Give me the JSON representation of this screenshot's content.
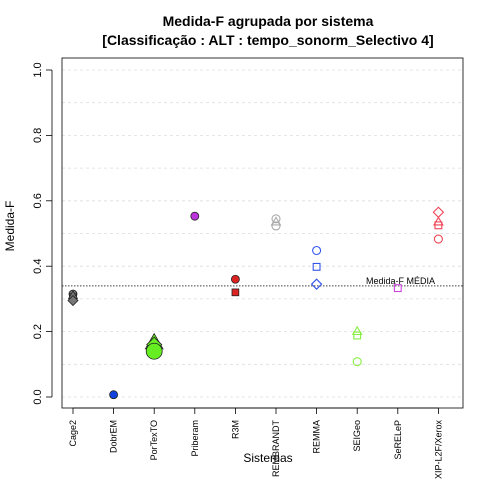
{
  "chart_data": {
    "type": "scatter",
    "title_line1": "Medida-F agrupada por sistema",
    "title_line2": "[Classificação : ALT : tempo_sonorm_Selectivo 4]",
    "xlabel": "Sistemas",
    "ylabel": "Medida-F",
    "ylim": [
      0,
      1
    ],
    "yticks": [
      "0.0",
      "0.2",
      "0.4",
      "0.6",
      "0.8",
      "1.0"
    ],
    "grid": true,
    "categories": [
      "Cage2",
      "DobrEM",
      "PorTexTO",
      "Priberam",
      "R3M",
      "REMBRANDT",
      "REMMA",
      "SEIGeo",
      "SeRELeP",
      "XIP-L2F/Xerox"
    ],
    "points": [
      {
        "category": "Cage2",
        "value": 0.315,
        "shape": "circle",
        "color": "#777777",
        "filled": true,
        "size": 4
      },
      {
        "category": "Cage2",
        "value": 0.305,
        "shape": "square",
        "color": "#777777",
        "filled": true,
        "size": 4
      },
      {
        "category": "Cage2",
        "value": 0.31,
        "shape": "triangle",
        "color": "#777777",
        "filled": true,
        "size": 4
      },
      {
        "category": "Cage2",
        "value": 0.295,
        "shape": "diamond",
        "color": "#777777",
        "filled": true,
        "size": 4
      },
      {
        "category": "DobrEM",
        "value": 0.007,
        "shape": "circle",
        "color": "#1144dd",
        "filled": true,
        "size": 4
      },
      {
        "category": "PorTexTO",
        "value": 0.165,
        "shape": "triangle",
        "color": "#66ee22",
        "filled": true,
        "size": 8
      },
      {
        "category": "PorTexTO",
        "value": 0.15,
        "shape": "square",
        "color": "#66ee22",
        "filled": true,
        "size": 6
      },
      {
        "category": "PorTexTO",
        "value": 0.16,
        "shape": "diamond",
        "color": "#66ee22",
        "filled": true,
        "size": 6
      },
      {
        "category": "PorTexTO",
        "value": 0.14,
        "shape": "circle",
        "color": "#66ee22",
        "filled": true,
        "size": 8
      },
      {
        "category": "Priberam",
        "value": 0.553,
        "shape": "circle",
        "color": "#bb33dd",
        "filled": true,
        "size": 4
      },
      {
        "category": "R3M",
        "value": 0.36,
        "shape": "circle",
        "color": "#dd2222",
        "filled": true,
        "size": 4
      },
      {
        "category": "R3M",
        "value": 0.32,
        "shape": "square",
        "color": "#dd2222",
        "filled": true,
        "size": 4
      },
      {
        "category": "REMBRANDT",
        "value": 0.545,
        "shape": "circle",
        "color": "#aaaaaa",
        "filled": false,
        "size": 4
      },
      {
        "category": "REMBRANDT",
        "value": 0.535,
        "shape": "triangle",
        "color": "#aaaaaa",
        "filled": false,
        "size": 4
      },
      {
        "category": "REMBRANDT",
        "value": 0.523,
        "shape": "circle",
        "color": "#aaaaaa",
        "filled": false,
        "size": 4
      },
      {
        "category": "REMMA",
        "value": 0.448,
        "shape": "circle",
        "color": "#3355ee",
        "filled": false,
        "size": 4
      },
      {
        "category": "REMMA",
        "value": 0.398,
        "shape": "square",
        "color": "#3355ee",
        "filled": false,
        "size": 4
      },
      {
        "category": "REMMA",
        "value": 0.345,
        "shape": "diamond",
        "color": "#3355ee",
        "filled": false,
        "size": 4
      },
      {
        "category": "SEIGeo",
        "value": 0.2,
        "shape": "triangle",
        "color": "#88ee44",
        "filled": false,
        "size": 4
      },
      {
        "category": "SEIGeo",
        "value": 0.188,
        "shape": "square",
        "color": "#88ee44",
        "filled": false,
        "size": 4
      },
      {
        "category": "SEIGeo",
        "value": 0.108,
        "shape": "circle",
        "color": "#88ee44",
        "filled": false,
        "size": 4
      },
      {
        "category": "SeRELeP",
        "value": 0.333,
        "shape": "square",
        "color": "#cc44dd",
        "filled": false,
        "size": 4
      },
      {
        "category": "XIP-L2F/Xerox",
        "value": 0.565,
        "shape": "diamond",
        "color": "#ee4455",
        "filled": false,
        "size": 4
      },
      {
        "category": "XIP-L2F/Xerox",
        "value": 0.535,
        "shape": "triangle",
        "color": "#ee4455",
        "filled": false,
        "size": 4
      },
      {
        "category": "XIP-L2F/Xerox",
        "value": 0.525,
        "shape": "square",
        "color": "#ee4455",
        "filled": false,
        "size": 4
      },
      {
        "category": "XIP-L2F/Xerox",
        "value": 0.483,
        "shape": "circle",
        "color": "#ee4455",
        "filled": false,
        "size": 4
      }
    ],
    "reference_line": {
      "label": "Medida-F MÉDIA",
      "value": 0.34,
      "color": "#888888"
    }
  }
}
